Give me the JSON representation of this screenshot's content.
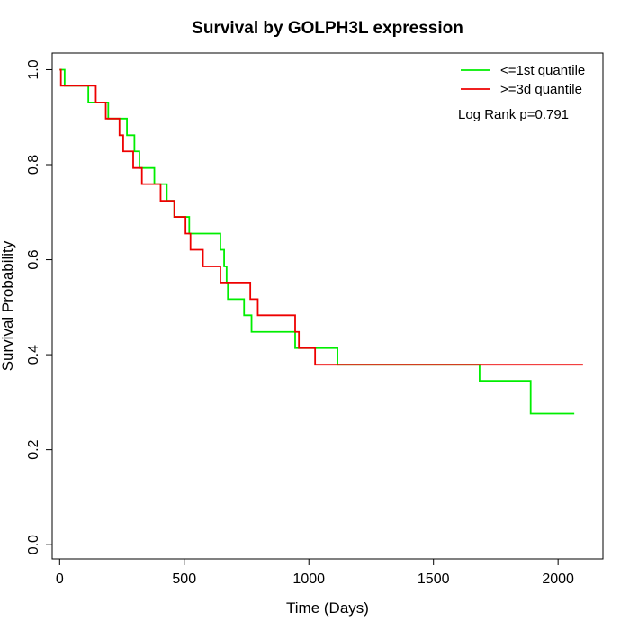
{
  "chart_data": {
    "type": "line",
    "title": "Survival by GOLPH3L expression",
    "xlabel": "Time (Days)",
    "ylabel": "Survival Probability",
    "xlim": [
      -30,
      2180
    ],
    "ylim": [
      -0.03,
      1.035
    ],
    "x_ticks": [
      0,
      500,
      1000,
      1500,
      2000
    ],
    "y_ticks": [
      0.0,
      0.2,
      0.4,
      0.6,
      0.8,
      1.0
    ],
    "x_tick_labels": [
      "0",
      "500",
      "1000",
      "1500",
      "2000"
    ],
    "y_tick_labels": [
      "0.0",
      "0.2",
      "0.4",
      "0.6",
      "0.8",
      "1.0"
    ],
    "grid": false,
    "legend_position": "top-right",
    "annotation": "Log Rank p=0.791",
    "series": [
      {
        "name": "<=1st quantile",
        "color": "#00ee00",
        "steps": [
          [
            0,
            1.0
          ],
          [
            20,
            0.966
          ],
          [
            115,
            0.931
          ],
          [
            160,
            0.931
          ],
          [
            195,
            0.897
          ],
          [
            270,
            0.862
          ],
          [
            300,
            0.828
          ],
          [
            320,
            0.793
          ],
          [
            380,
            0.759
          ],
          [
            430,
            0.724
          ],
          [
            460,
            0.69
          ],
          [
            520,
            0.655
          ],
          [
            645,
            0.621
          ],
          [
            660,
            0.586
          ],
          [
            670,
            0.552
          ],
          [
            675,
            0.517
          ],
          [
            740,
            0.483
          ],
          [
            770,
            0.448
          ],
          [
            945,
            0.414
          ],
          [
            1115,
            0.379
          ],
          [
            1685,
            0.345
          ],
          [
            1890,
            0.276
          ],
          [
            2065,
            0.276
          ]
        ]
      },
      {
        "name": ">=3d quantile",
        "color": "#ee0000",
        "steps": [
          [
            0,
            1.0
          ],
          [
            5,
            0.966
          ],
          [
            145,
            0.931
          ],
          [
            185,
            0.897
          ],
          [
            240,
            0.862
          ],
          [
            255,
            0.828
          ],
          [
            295,
            0.793
          ],
          [
            330,
            0.759
          ],
          [
            405,
            0.724
          ],
          [
            460,
            0.69
          ],
          [
            505,
            0.655
          ],
          [
            525,
            0.621
          ],
          [
            575,
            0.586
          ],
          [
            645,
            0.552
          ],
          [
            765,
            0.517
          ],
          [
            795,
            0.483
          ],
          [
            945,
            0.448
          ],
          [
            960,
            0.414
          ],
          [
            1025,
            0.379
          ],
          [
            2100,
            0.379
          ]
        ]
      }
    ]
  }
}
